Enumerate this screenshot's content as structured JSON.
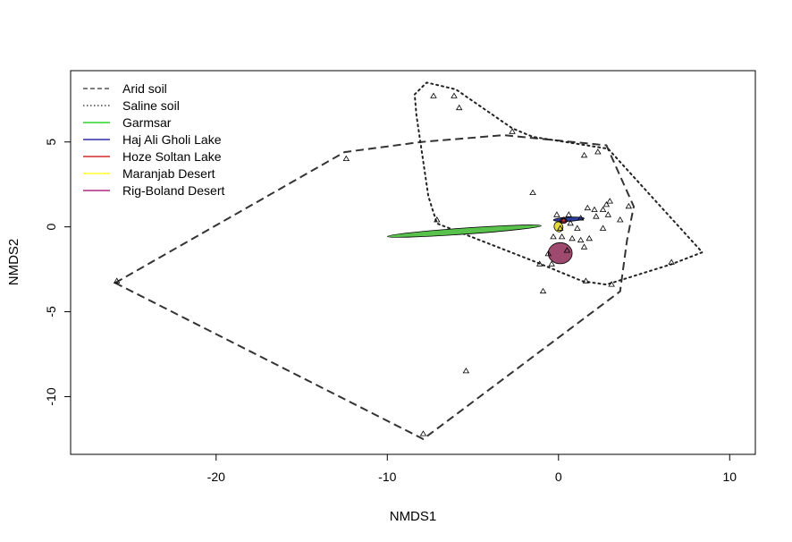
{
  "chart_data": {
    "type": "scatter",
    "title": "",
    "xlabel": "NMDS1",
    "ylabel": "NMDS2",
    "xlim": [
      -28.5,
      11.5
    ],
    "ylim": [
      -13.4,
      9.2
    ],
    "xticks": [
      -20,
      -10,
      0,
      10
    ],
    "yticks": [
      -10,
      -5,
      0,
      5
    ],
    "grid": false,
    "legend_position": "top-left",
    "points": [
      [
        -25.8,
        -3.2
      ],
      [
        -12.4,
        4.0
      ],
      [
        -7.9,
        -12.2
      ],
      [
        -5.4,
        -8.5
      ],
      [
        -7.3,
        7.7
      ],
      [
        -6.1,
        7.7
      ],
      [
        -5.8,
        7.0
      ],
      [
        -2.7,
        5.6
      ],
      [
        -7.1,
        0.4
      ],
      [
        -1.5,
        2.0
      ],
      [
        -1.1,
        -2.2
      ],
      [
        -0.9,
        -3.8
      ],
      [
        -0.4,
        -2.2
      ],
      [
        1.6,
        -3.2
      ],
      [
        1.5,
        4.2
      ],
      [
        2.3,
        4.4
      ],
      [
        3.1,
        -3.4
      ],
      [
        6.6,
        -2.1
      ],
      [
        3.6,
        0.4
      ],
      [
        4.1,
        1.2
      ],
      [
        2.8,
        1.3
      ],
      [
        2.6,
        1.0
      ],
      [
        3.0,
        1.5
      ],
      [
        2.9,
        0.7
      ],
      [
        2.1,
        1.0
      ],
      [
        1.7,
        1.1
      ],
      [
        2.2,
        0.6
      ],
      [
        1.3,
        0.5
      ],
      [
        1.8,
        -0.7
      ],
      [
        1.3,
        -0.8
      ],
      [
        1.5,
        -1.2
      ],
      [
        0.6,
        0.7
      ],
      [
        0.3,
        0.4
      ],
      [
        0.7,
        0.2
      ],
      [
        0.1,
        -0.1
      ],
      [
        -0.1,
        0.7
      ],
      [
        -0.3,
        -0.6
      ],
      [
        0.8,
        -0.7
      ],
      [
        0.2,
        -0.6
      ],
      [
        -0.6,
        -1.6
      ],
      [
        1.1,
        -0.1
      ],
      [
        2.6,
        -0.1
      ],
      [
        0.5,
        -1.4
      ]
    ],
    "hulls": [
      {
        "name": "Arid soil",
        "style": "dashed",
        "color": "#333333",
        "points": [
          [
            -25.9,
            -3.3
          ],
          [
            -12.5,
            4.4
          ],
          [
            -8.0,
            5.0
          ],
          [
            -3.2,
            5.4
          ],
          [
            2.8,
            4.8
          ],
          [
            4.4,
            1.2
          ],
          [
            4.0,
            -0.8
          ],
          [
            3.6,
            -3.8
          ],
          [
            -7.9,
            -12.5
          ]
        ]
      },
      {
        "name": "Saline soil",
        "style": "dotted",
        "color": "#222222",
        "points": [
          [
            -8.4,
            7.8
          ],
          [
            -7.7,
            8.5
          ],
          [
            -6.0,
            8.1
          ],
          [
            -2.7,
            5.8
          ],
          [
            -1.5,
            5.3
          ],
          [
            2.9,
            4.6
          ],
          [
            8.4,
            -1.5
          ],
          [
            6.6,
            -2.2
          ],
          [
            2.8,
            -3.4
          ],
          [
            1.4,
            -3.2
          ],
          [
            -1.5,
            -2.0
          ],
          [
            -7.1,
            0.2
          ],
          [
            -7.6,
            1.8
          ],
          [
            -8.3,
            6.6
          ]
        ]
      }
    ],
    "ellipses": [
      {
        "name": "Garmsar",
        "color": "#00cc00",
        "fill": "#59c24c",
        "cx": -5.5,
        "cy": -0.25,
        "rx": 4.5,
        "ry": 0.18,
        "angle": 4
      },
      {
        "name": "Haj Ali Gholi Lake",
        "color": "#000099",
        "fill": "#2c3c99",
        "cx": 0.6,
        "cy": 0.45,
        "rx": 0.9,
        "ry": 0.12,
        "angle": 3
      },
      {
        "name": "Hoze Soltan Lake",
        "color": "#cc0000",
        "fill": "#c03030",
        "cx": 0.3,
        "cy": 0.35,
        "rx": 0.2,
        "ry": 0.15,
        "angle": 0
      },
      {
        "name": "Maranjab Desert",
        "color": "#ffff00",
        "fill": "#e6db3c",
        "cx": 0.0,
        "cy": 0.0,
        "rx": 0.25,
        "ry": 0.3,
        "angle": 20
      },
      {
        "name": "Rig-Boland Desert",
        "color": "#990066",
        "fill": "#9e4a6e",
        "cx": 0.1,
        "cy": -1.55,
        "rx": 0.7,
        "ry": 0.62,
        "angle": 0
      }
    ],
    "legend": [
      {
        "label": "Arid soil",
        "style": "dashed",
        "color": "#333333"
      },
      {
        "label": "Saline soil",
        "style": "dotted",
        "color": "#222222"
      },
      {
        "label": "Garmsar",
        "style": "solid",
        "color": "#00cc00"
      },
      {
        "label": "Haj Ali Gholi Lake",
        "style": "solid",
        "color": "#000099"
      },
      {
        "label": "Hoze Soltan Lake",
        "style": "solid",
        "color": "#cc0000"
      },
      {
        "label": "Maranjab Desert",
        "style": "solid",
        "color": "#ffff00"
      },
      {
        "label": "Rig-Boland Desert",
        "style": "solid",
        "color": "#990066"
      }
    ]
  }
}
